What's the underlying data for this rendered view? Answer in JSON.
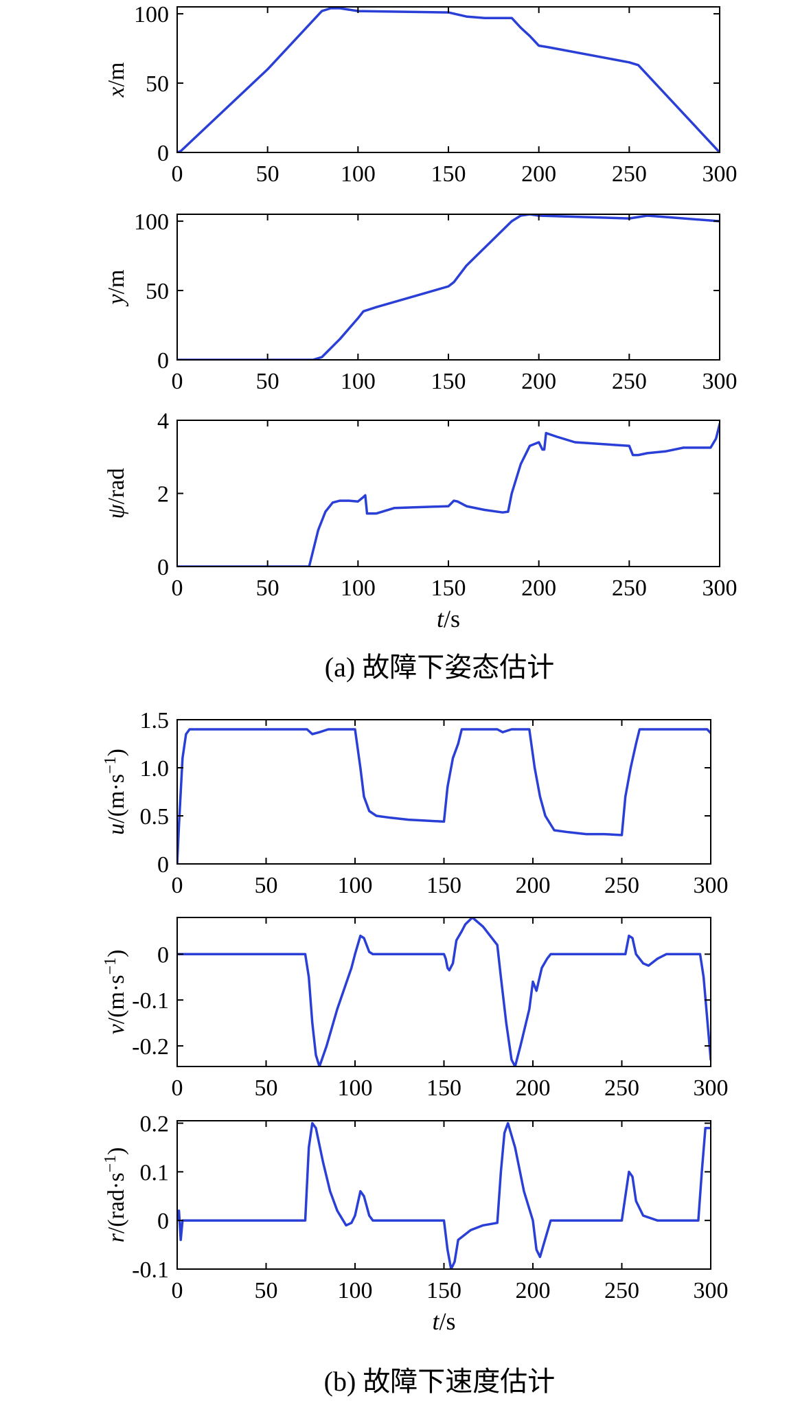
{
  "figure": {
    "caption_a": "(a) 故障下姿态估计",
    "caption_b": "(b) 故障下速度估计"
  },
  "series_color": "#2a3fd6",
  "chart_data": [
    {
      "type": "line",
      "id": "x",
      "ylabel_var": "x",
      "ylabel_unit": "/m",
      "xlabel": "",
      "xlim": [
        0,
        300
      ],
      "ylim": [
        0,
        105
      ],
      "xticks": [
        "0",
        "50",
        "100",
        "150",
        "200",
        "250",
        "300"
      ],
      "yticks": [
        {
          "v": 0,
          "label": "0"
        },
        {
          "v": 50,
          "label": "50"
        },
        {
          "v": 100,
          "label": "100"
        }
      ],
      "grid": false,
      "x": [
        0,
        2,
        50,
        80,
        85,
        90,
        100,
        150,
        160,
        170,
        185,
        190,
        195,
        200,
        205,
        250,
        255,
        300
      ],
      "y": [
        0,
        1,
        60,
        102,
        104,
        104,
        102,
        101,
        98,
        97,
        97,
        90,
        84,
        77,
        76,
        65,
        63,
        0
      ]
    },
    {
      "type": "line",
      "id": "y",
      "ylabel_var": "y",
      "ylabel_unit": "/m",
      "xlabel": "",
      "xlim": [
        0,
        300
      ],
      "ylim": [
        0,
        105
      ],
      "xticks": [
        "0",
        "50",
        "100",
        "150",
        "200",
        "250",
        "300"
      ],
      "yticks": [
        {
          "v": 0,
          "label": "0"
        },
        {
          "v": 50,
          "label": "50"
        },
        {
          "v": 100,
          "label": "100"
        }
      ],
      "grid": false,
      "x": [
        0,
        70,
        75,
        80,
        90,
        100,
        103,
        110,
        150,
        153,
        160,
        185,
        190,
        195,
        200,
        250,
        260,
        270,
        300
      ],
      "y": [
        0,
        0,
        0,
        2,
        15,
        30,
        35,
        38,
        53,
        56,
        68,
        100,
        104,
        105,
        104,
        102,
        104,
        103,
        100
      ]
    },
    {
      "type": "line",
      "id": "psi",
      "ylabel_var": "ψ",
      "ylabel_unit": "/rad",
      "xlabel": "t/s",
      "xlim": [
        0,
        300
      ],
      "ylim": [
        0,
        4
      ],
      "xticks": [
        "0",
        "50",
        "100",
        "150",
        "200",
        "250",
        "300"
      ],
      "yticks": [
        {
          "v": 0,
          "label": "0"
        },
        {
          "v": 2,
          "label": "2"
        },
        {
          "v": 4,
          "label": "4"
        }
      ],
      "grid": false,
      "x": [
        0,
        73,
        75,
        78,
        82,
        86,
        90,
        95,
        100,
        103,
        104,
        105,
        110,
        120,
        150,
        153,
        155,
        160,
        170,
        180,
        183,
        185,
        190,
        195,
        200,
        202,
        203,
        204,
        210,
        220,
        250,
        252,
        255,
        260,
        270,
        280,
        295,
        298,
        300
      ],
      "y": [
        0,
        0,
        0.4,
        1.0,
        1.5,
        1.75,
        1.8,
        1.8,
        1.78,
        1.9,
        1.95,
        1.45,
        1.45,
        1.6,
        1.65,
        1.8,
        1.78,
        1.65,
        1.55,
        1.48,
        1.5,
        2.0,
        2.8,
        3.3,
        3.4,
        3.2,
        3.2,
        3.65,
        3.55,
        3.4,
        3.3,
        3.05,
        3.05,
        3.1,
        3.15,
        3.25,
        3.25,
        3.5,
        3.9
      ]
    },
    {
      "type": "line",
      "id": "u",
      "ylabel_var": "u",
      "ylabel_unit": "/(m·s",
      "ylabel_sup": "−1",
      "ylabel_tail": ")",
      "xlabel": "",
      "xlim": [
        0,
        300
      ],
      "ylim": [
        0,
        1.5
      ],
      "xticks": [
        "0",
        "50",
        "100",
        "150",
        "200",
        "250",
        "300"
      ],
      "yticks": [
        {
          "v": 0,
          "label": "0"
        },
        {
          "v": 0.5,
          "label": "0.5"
        },
        {
          "v": 1.0,
          "label": "1.0"
        },
        {
          "v": 1.5,
          "label": "1.5"
        }
      ],
      "grid": false,
      "x": [
        0,
        1,
        3,
        5,
        7,
        10,
        73,
        76,
        80,
        85,
        100,
        103,
        105,
        108,
        112,
        120,
        130,
        140,
        150,
        152,
        155,
        158,
        160,
        180,
        183,
        188,
        198,
        201,
        204,
        207,
        212,
        220,
        230,
        240,
        250,
        252,
        255,
        258,
        260,
        298,
        300
      ],
      "y": [
        0,
        0.4,
        1.1,
        1.35,
        1.4,
        1.4,
        1.4,
        1.35,
        1.37,
        1.4,
        1.4,
        1.0,
        0.7,
        0.55,
        0.5,
        0.48,
        0.46,
        0.45,
        0.44,
        0.8,
        1.1,
        1.25,
        1.4,
        1.4,
        1.37,
        1.4,
        1.4,
        1.0,
        0.7,
        0.5,
        0.35,
        0.33,
        0.31,
        0.31,
        0.3,
        0.7,
        1.0,
        1.25,
        1.4,
        1.4,
        1.36
      ]
    },
    {
      "type": "line",
      "id": "v",
      "ylabel_var": "v",
      "ylabel_unit": "/(m·s",
      "ylabel_sup": "−1",
      "ylabel_tail": ")",
      "xlabel": "",
      "xlim": [
        0,
        300
      ],
      "ylim": [
        -0.245,
        0.08
      ],
      "xticks": [
        "0",
        "50",
        "100",
        "150",
        "200",
        "250",
        "300"
      ],
      "yticks": [
        {
          "v": 0,
          "label": "0"
        },
        {
          "v": -0.1,
          "label": "-0.1"
        },
        {
          "v": -0.2,
          "label": "-0.2"
        }
      ],
      "grid": false,
      "x": [
        0,
        72,
        74,
        76,
        78,
        80,
        84,
        90,
        98,
        100,
        103,
        105,
        108,
        110,
        150,
        151,
        152,
        153,
        155,
        157,
        160,
        162,
        166,
        172,
        180,
        182,
        185,
        188,
        190,
        193,
        198,
        200,
        202,
        205,
        208,
        210,
        252,
        254,
        256,
        258,
        262,
        265,
        270,
        275,
        294,
        296,
        300
      ],
      "y": [
        0,
        0,
        -0.05,
        -0.15,
        -0.22,
        -0.245,
        -0.2,
        -0.12,
        -0.03,
        0,
        0.04,
        0.035,
        0.005,
        0,
        0,
        -0.01,
        -0.03,
        -0.035,
        -0.02,
        0.03,
        0.05,
        0.065,
        0.08,
        0.06,
        0.02,
        -0.05,
        -0.15,
        -0.23,
        -0.245,
        -0.2,
        -0.12,
        -0.06,
        -0.08,
        -0.03,
        -0.01,
        0,
        0,
        0.04,
        0.035,
        0.0,
        -0.02,
        -0.025,
        -0.01,
        0,
        0,
        -0.05,
        -0.23
      ]
    },
    {
      "type": "line",
      "id": "r",
      "ylabel_var": "r",
      "ylabel_unit": "/(rad·s",
      "ylabel_sup": "−1",
      "ylabel_tail": ")",
      "xlabel": "t/s",
      "xlim": [
        0,
        300
      ],
      "ylim": [
        -0.1,
        0.205
      ],
      "xticks": [
        "0",
        "50",
        "100",
        "150",
        "200",
        "250",
        "300"
      ],
      "yticks": [
        {
          "v": 0.2,
          "label": "0.2"
        },
        {
          "v": 0.1,
          "label": "0.1"
        },
        {
          "v": 0,
          "label": "0"
        },
        {
          "v": -0.1,
          "label": "-0.1"
        }
      ],
      "grid": false,
      "x": [
        0,
        1,
        2,
        3,
        72,
        74,
        76,
        78,
        82,
        86,
        90,
        95,
        98,
        100,
        103,
        105,
        108,
        110,
        150,
        152,
        154,
        156,
        158,
        165,
        172,
        180,
        182,
        184,
        186,
        190,
        195,
        200,
        202,
        204,
        206,
        210,
        250,
        252,
        254,
        256,
        258,
        262,
        270,
        293,
        295,
        297,
        300
      ],
      "y": [
        0,
        0.02,
        -0.04,
        0,
        0,
        0.15,
        0.2,
        0.19,
        0.12,
        0.06,
        0.02,
        -0.01,
        -0.005,
        0.01,
        0.06,
        0.05,
        0.01,
        0,
        0,
        -0.06,
        -0.1,
        -0.085,
        -0.04,
        -0.02,
        -0.01,
        -0.005,
        0.1,
        0.18,
        0.2,
        0.15,
        0.06,
        0.0,
        -0.06,
        -0.075,
        -0.05,
        0,
        0,
        0.05,
        0.1,
        0.09,
        0.04,
        0.01,
        0,
        0,
        0.1,
        0.19,
        0.19
      ]
    }
  ]
}
